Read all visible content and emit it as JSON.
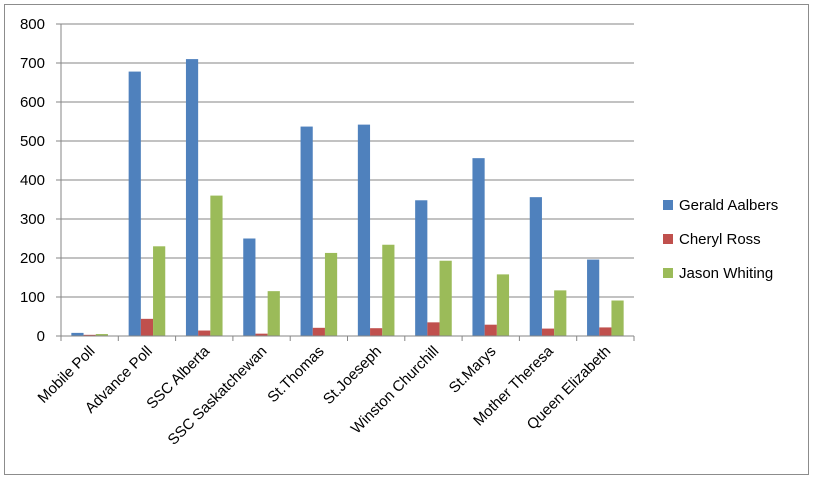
{
  "chart_data": {
    "type": "bar",
    "categories": [
      "Mobile Poll",
      "Advance Poll",
      "SSC Alberta",
      "SSC Saskatchewan",
      "St.Thomas",
      "St.Joeseph",
      "Winston Churchill",
      "St.Marys",
      "Mother Theresa",
      "Queen Elizabeth"
    ],
    "series": [
      {
        "name": "Gerald Aalbers",
        "color": "#4F81BD",
        "values": [
          8,
          678,
          710,
          250,
          537,
          542,
          348,
          456,
          356,
          196
        ]
      },
      {
        "name": "Cheryl Ross",
        "color": "#C0504D",
        "values": [
          3,
          44,
          14,
          6,
          21,
          20,
          35,
          29,
          19,
          22
        ]
      },
      {
        "name": "Jason Whiting",
        "color": "#9BBB59",
        "values": [
          5,
          230,
          360,
          115,
          213,
          234,
          193,
          158,
          117,
          91
        ]
      }
    ],
    "y_ticks": [
      "0",
      "100",
      "200",
      "300",
      "400",
      "500",
      "600",
      "700",
      "800"
    ],
    "ylim": [
      0,
      800
    ],
    "grid": true,
    "legend_position": "right"
  }
}
